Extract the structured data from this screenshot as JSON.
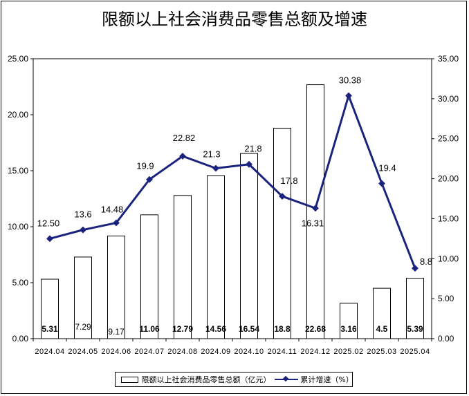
{
  "chart_data": {
    "type": "bar+line",
    "title": "限额以上社会消费品零售总额及增速",
    "categories": [
      "2024.04",
      "2024.05",
      "2024.06",
      "2024.07",
      "2024.08",
      "2024.09",
      "2024.10",
      "2024.11",
      "2024.12",
      "2025.02",
      "2025.03",
      "2025.04"
    ],
    "series": [
      {
        "name": "限额以上社会消费品零售总额（亿元）",
        "kind": "bar",
        "axis": "left",
        "values": [
          5.31,
          7.29,
          9.17,
          11.06,
          12.79,
          14.56,
          16.54,
          18.8,
          22.68,
          3.16,
          4.5,
          5.39
        ],
        "labels": [
          "5.31",
          "7.29",
          "9.17",
          "11.06",
          "12.79",
          "14.56",
          "16.54",
          "18.8",
          "22.68",
          "3.16",
          "4.5",
          "5.39"
        ]
      },
      {
        "name": "累计增速（%）",
        "kind": "line",
        "axis": "right",
        "color": "#1a237e",
        "values": [
          12.5,
          13.6,
          14.48,
          19.9,
          22.82,
          21.3,
          21.8,
          17.8,
          16.31,
          30.38,
          19.4,
          8.8
        ],
        "labels": [
          "12.50",
          "13.6",
          "14.48",
          "19.9",
          "22.82",
          "21.3",
          "21.8",
          "17.8",
          "16.31",
          "30.38",
          "19.4",
          "8.8"
        ]
      }
    ],
    "y_left": {
      "ylim": [
        0,
        25
      ],
      "ticks": [
        "0.00",
        "5.00",
        "10.00",
        "15.00",
        "20.00",
        "25.00"
      ]
    },
    "y_right": {
      "ylim": [
        0,
        35
      ],
      "ticks": [
        "0.00",
        "5.00",
        "10.00",
        "15.00",
        "20.00",
        "25.00",
        "30.00",
        "35.00"
      ]
    },
    "grid": false,
    "legend_position": "bottom"
  },
  "legend": {
    "bar_label": "限额以上社会消费品零售总额（亿元）",
    "line_label": "累计增速（%）"
  }
}
